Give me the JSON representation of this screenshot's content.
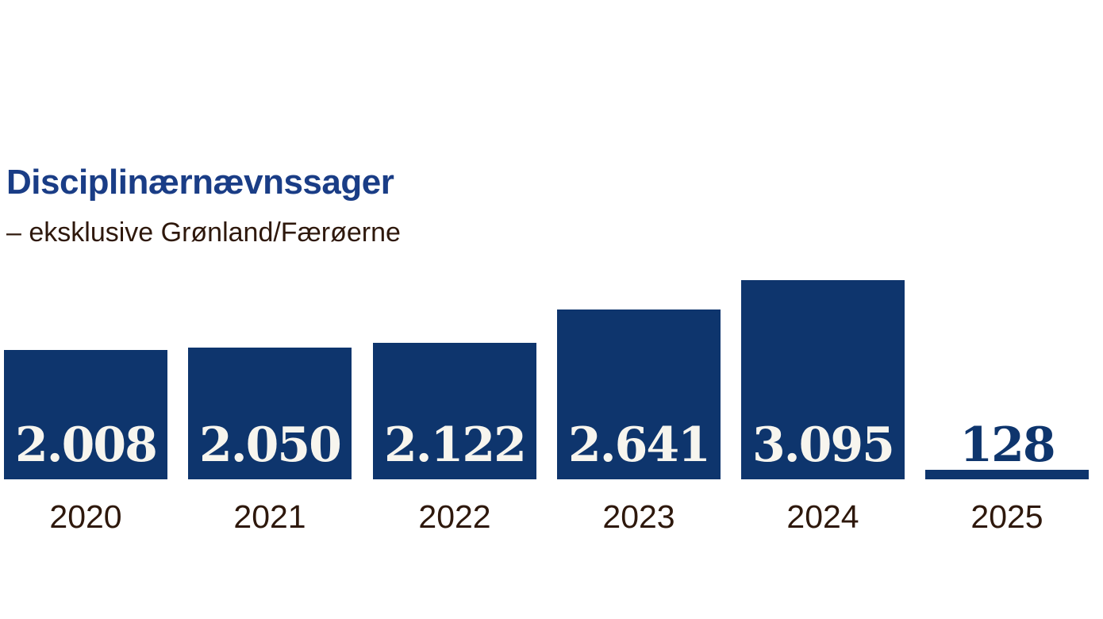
{
  "chart_data": {
    "type": "bar",
    "title": "Disciplinærnævnssager",
    "subtitle": "– eksklusive Grønland/Færøerne",
    "categories": [
      "2020",
      "2021",
      "2022",
      "2023",
      "2024",
      "2025"
    ],
    "values": [
      2008,
      2050,
      2122,
      2641,
      3095,
      128
    ],
    "value_labels": [
      "2.008",
      "2.050",
      "2.122",
      "2.641",
      "3.095",
      "128"
    ],
    "xlabel": "",
    "ylabel": "",
    "ylim": [
      0,
      3095
    ],
    "grid": false,
    "legend": "none",
    "orientation": "vertical",
    "value_label_position": "inside-bottom, above bar when bar too short (2025)"
  },
  "colors": {
    "background": "#ffffff",
    "bar": "#0e356d",
    "title": "#1a3d86",
    "dark_text": "#2e180c",
    "value_light": "#f7f5ee"
  }
}
